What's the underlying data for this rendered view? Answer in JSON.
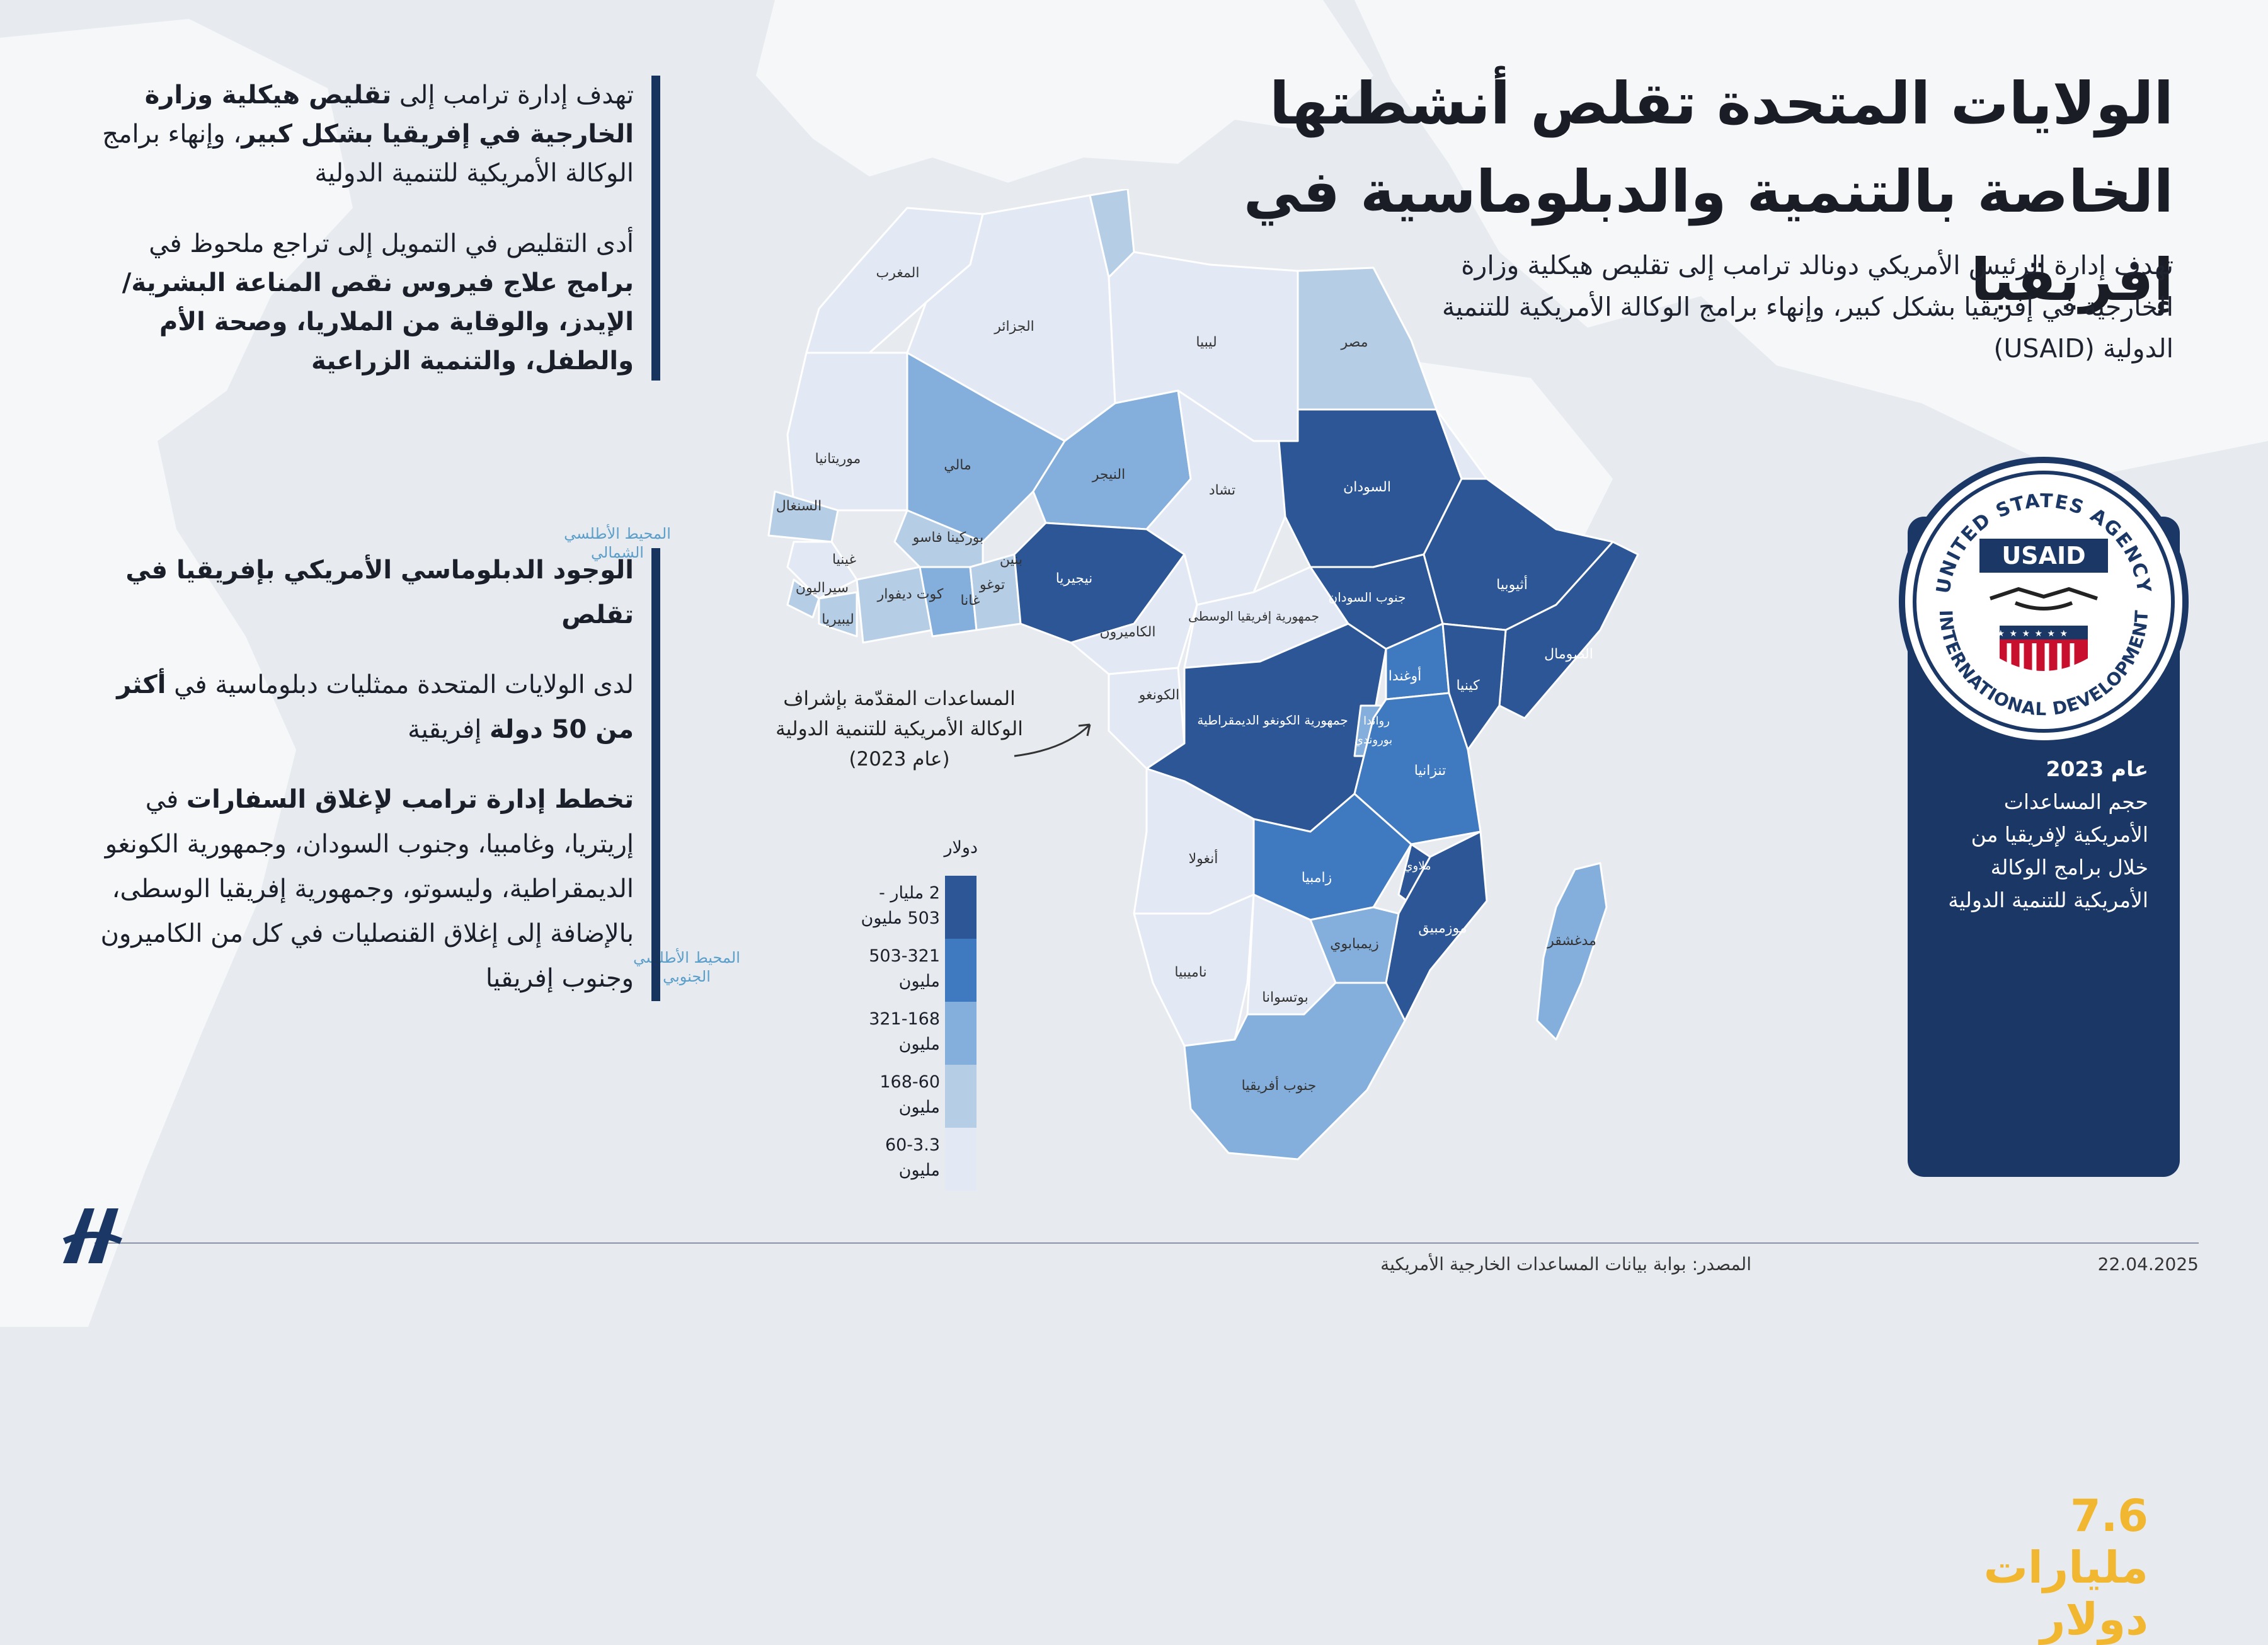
{
  "title": "الولايات المتحدة تقلص أنشطتها الخاصة بالتنمية والدبلوماسية في إفريقيا",
  "subtitle": "تهدف إدارة الرئيس الأمريكي دونالد ترامب إلى تقليص هيكلية وزارة الخارجية في إفريقيا بشكل كبير، وإنهاء برامج الوكالة الأمريكية للتنمية الدولية (USAID)",
  "panel_top": {
    "p1_a": "تهدف إدارة ترامب إلى ",
    "p1_b": "تقليص هيكلية وزارة الخارجية في إفريقيا بشكل كبير",
    "p1_c": "، وإنهاء برامج الوكالة الأمريكية للتنمية الدولية",
    "p2_a": "أدى التقليص في التمويل إلى تراجع ملحوظ في ",
    "p2_b": "برامج علاج فيروس نقص المناعة البشرية/الإيدز، والوقاية من الملاريا، وصحة الأم والطفل، والتنمية الزراعية"
  },
  "panel_bottom": {
    "heading": "الوجود الدبلوماسي الأمريكي بإفريقيا في تقلص",
    "p1_a": "لدى الولايات المتحدة ممثليات دبلوماسية في ",
    "p1_b": "أكثر من 50 دولة",
    "p1_c": " إفريقية",
    "p2_a": "تخطط إدارة ترامب لإغلاق السفارات",
    "p2_b": " في إريتريا، وغامبيا، وجنوب السودان، وجمهورية الكونغو الديمقراطية، وليسوتو، وجمهورية إفريقيا الوسطى، بالإضافة إلى إغلاق القنصليات في كل من الكاميرون وجنوب إفريقيا"
  },
  "usaid_box": {
    "seal_top": "UNITED STATES AGENCY",
    "seal_bottom": "INTERNATIONAL DEVELOPMENT",
    "seal_name": "USAID",
    "year": "عام 2023",
    "desc": "حجم المساعدات الأمريكية لإفريقيا من خلال برامج الوكالة الأمريكية للتنمية الدولية",
    "amount": "7.6",
    "unit1": "مليارات",
    "unit2": "دولار"
  },
  "annotation": "المساعدات المقدّمة بإشراف الوكالة الأمريكية للتنمية الدولية (عام 2023)",
  "legend": {
    "unit": "دولار",
    "items": [
      {
        "label": "2 مليار - 503 مليون",
        "color": "#2c5696"
      },
      {
        "label": "503-321 مليون",
        "color": "#3f79c0"
      },
      {
        "label": "321-168 مليون",
        "color": "#84aedb"
      },
      {
        "label": "168-60 مليون",
        "color": "#b6cde6"
      },
      {
        "label": "60-3.3 مليون",
        "color": "#e2e9f4"
      }
    ]
  },
  "oceans": {
    "north": "المحيط الأطلسي الشمالي",
    "south": "المحيط الأطلسي الجنوبي"
  },
  "map_labels": {
    "morocco": "المغرب",
    "algeria": "الجزائر",
    "libya": "ليبيا",
    "egypt": "مصر",
    "mauritania": "موريتانيا",
    "mali": "مالي",
    "niger": "النيجر",
    "chad": "تشاد",
    "sudan": "السودان",
    "senegal": "السنغال",
    "guinea": "غينيا",
    "sierra_leone": "سيراليون",
    "liberia": "ليبيريا",
    "cote_divoire": "كوت ديفوار",
    "burkina": "بوركينا فاسو",
    "ghana": "غانا",
    "togo": "توغو",
    "benin": "بنين",
    "nigeria": "نيجيريا",
    "cameroon": "الكاميرون",
    "car": "جمهورية إفريقيا الوسطى",
    "south_sudan": "جنوب السودان",
    "ethiopia": "أثيوبيا",
    "somalia": "الصومال",
    "kenya": "كينيا",
    "uganda": "أوغندا",
    "rwanda": "رواندا",
    "burundi": "بوروندي",
    "congo": "الكونغو",
    "drc": "جمهورية الكونغو الديمقراطية",
    "tanzania": "تنزانيا",
    "angola": "أنغولا",
    "zambia": "زامبيا",
    "malawi": "ملاوي",
    "mozambique": "موزمبيق",
    "zimbabwe": "زيمبابوي",
    "namibia": "ناميبيا",
    "botswana": "بوتسوانا",
    "south_africa": "جنوب أفريقيا",
    "madagascar": "مدغشقر"
  },
  "footer": {
    "source": "المصدر: بوابة بيانات المساعدات الخارجية الأمريكية",
    "date": "22.04.2025"
  }
}
